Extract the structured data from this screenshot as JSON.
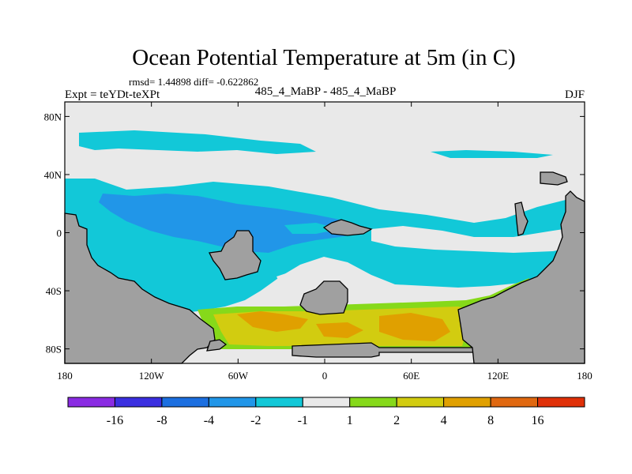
{
  "chart_data": {
    "type": "heatmap",
    "title": "Ocean Potential Temperature at 5m (in C)",
    "stats_line": "rmsd= 1.44898 diff= -0.622862",
    "left_label": "Expt = teYDt-teXPt",
    "center_label": "485_4_MaBP - 485_4_MaBP",
    "right_label": "DJF",
    "x_axis": {
      "range": [
        -180,
        180
      ],
      "ticks": [
        {
          "value": -180,
          "label": "180"
        },
        {
          "value": -120,
          "label": "120W"
        },
        {
          "value": -60,
          "label": "60W"
        },
        {
          "value": 0,
          "label": "0"
        },
        {
          "value": 60,
          "label": "60E"
        },
        {
          "value": 120,
          "label": "120E"
        },
        {
          "value": 180,
          "label": "180"
        }
      ]
    },
    "y_axis": {
      "range": [
        -90,
        90
      ],
      "ticks": [
        {
          "value": 80,
          "label": "80N"
        },
        {
          "value": 40,
          "label": "40N"
        },
        {
          "value": 0,
          "label": "0"
        },
        {
          "value": -40,
          "label": "40S"
        },
        {
          "value": -80,
          "label": "80S"
        }
      ]
    },
    "colorbar": {
      "levels": [
        "-16",
        "-8",
        "-4",
        "-2",
        "-1",
        "1",
        "2",
        "4",
        "8",
        "16"
      ],
      "colors": [
        "#8a2be2",
        "#3b2fe0",
        "#1c6fe0",
        "#2196e8",
        "#12c8d8",
        "#e9e9e9",
        "#86d91a",
        "#d2cc10",
        "#e0a000",
        "#e06810",
        "#e03008"
      ]
    },
    "regions": [
      {
        "name": "tropical-cooling-band",
        "class": "-2 to -1",
        "lon": [
          -180,
          180
        ],
        "lat": [
          -20,
          40
        ]
      },
      {
        "name": "pacific-cooling-core",
        "class": "-4 to -2",
        "lon": [
          -140,
          -30
        ],
        "lat": [
          -20,
          20
        ]
      },
      {
        "name": "north-cooling-patch",
        "class": "-2 to -1",
        "lon": [
          -160,
          -50
        ],
        "lat": [
          55,
          70
        ]
      },
      {
        "name": "southern-ocean-warming",
        "class": "2 to 4",
        "lon": [
          -80,
          110
        ],
        "lat": [
          -85,
          -50
        ]
      },
      {
        "name": "southern-ocean-warm-core",
        "class": "4 to 8",
        "lon": [
          -60,
          95
        ],
        "lat": [
          -80,
          -60
        ]
      }
    ],
    "land_color": "#a0a0a0",
    "missing_color": "#e9e9e9"
  }
}
